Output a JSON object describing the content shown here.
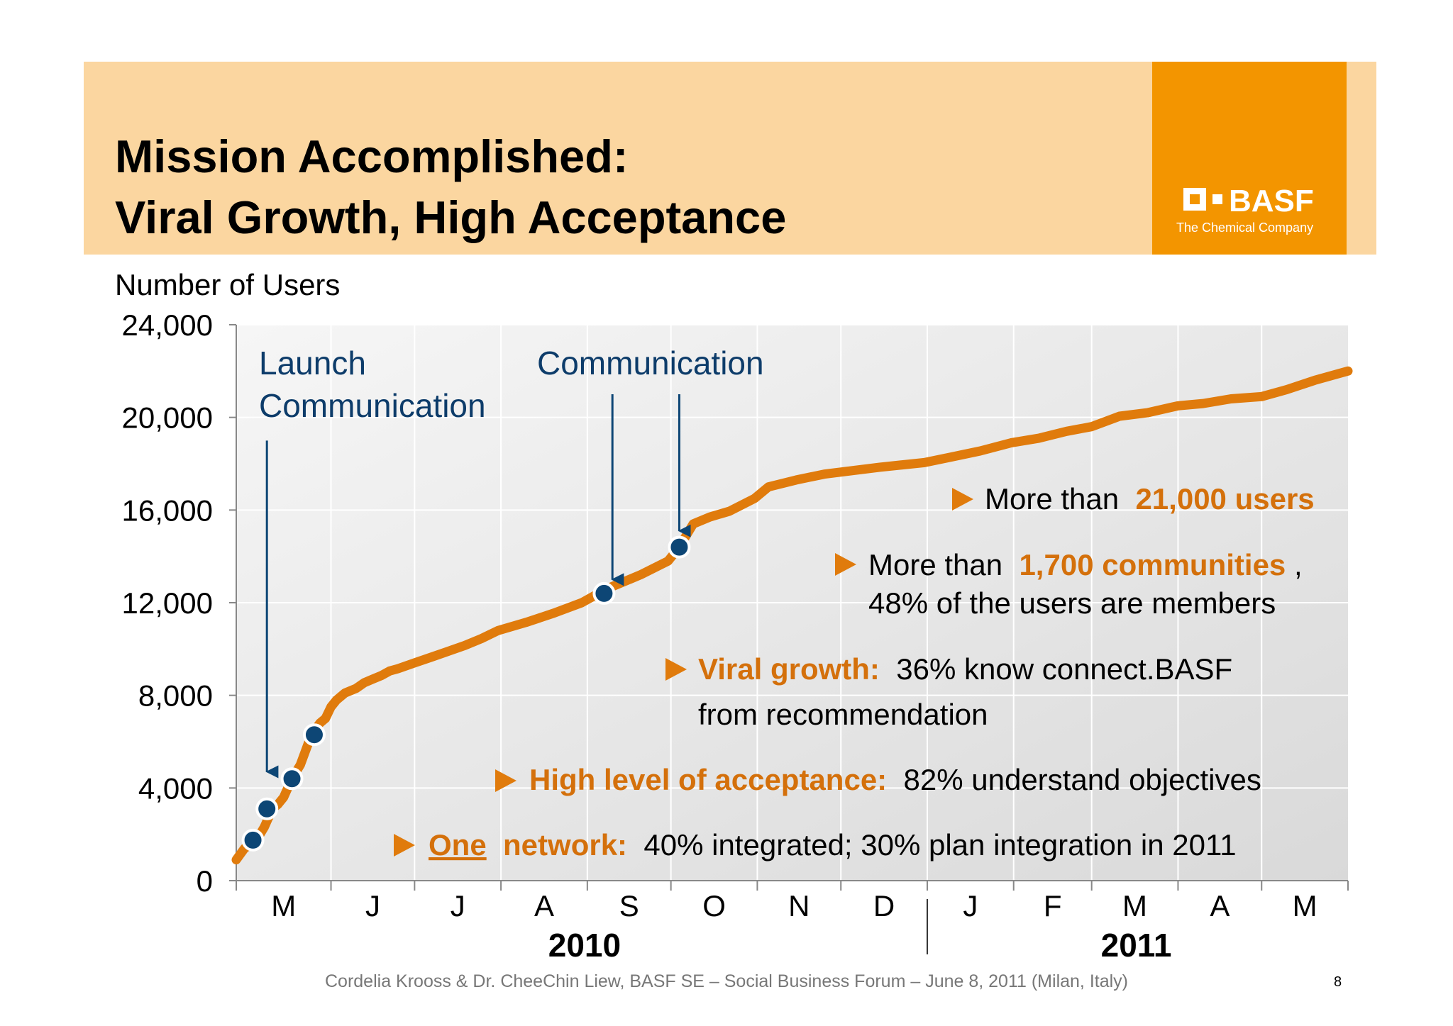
{
  "slide": {
    "title_line1": "Mission Accomplished:",
    "title_line2": "Viral Growth, High Acceptance",
    "logo_text": "BASF",
    "logo_subtitle": "The Chemical Company",
    "footer": "Cordelia Krooss & Dr. CheeChin Liew, BASF SE – Social Business Forum – June 8, 2011 (Milan, Italy)",
    "page_number": "8"
  },
  "colors": {
    "banner": "#fbd6a0",
    "logo_box": "#f39500",
    "line": "#e07b0c",
    "marker": "#0d4675",
    "highlight": "#d4700b",
    "annotation_text": "#0d3c6a"
  },
  "chart_data": {
    "type": "line",
    "ylabel": "Number of Users",
    "ylim": [
      0,
      24000
    ],
    "yticks": [
      0,
      4000,
      8000,
      12000,
      16000,
      20000,
      24000
    ],
    "ytick_labels": [
      "0",
      "4,000",
      "8,000",
      "12,000",
      "16,000",
      "20,000",
      "24,000"
    ],
    "grid": true,
    "month_boundaries": [
      "2010-04-28",
      "2010-06-01",
      "2010-07-01",
      "2010-08-01",
      "2010-09-01",
      "2010-10-01",
      "2010-11-01",
      "2010-12-01",
      "2011-01-01",
      "2011-02-01",
      "2011-03-01",
      "2011-04-01",
      "2011-05-01",
      "2011-06-01"
    ],
    "month_labels": [
      "M",
      "J",
      "J",
      "A",
      "S",
      "O",
      "N",
      "D",
      "J",
      "F",
      "M",
      "A",
      "M"
    ],
    "year_labels": [
      {
        "label": "2010",
        "center": "2010-08-31"
      },
      {
        "label": "2011",
        "center": "2011-03-17"
      }
    ],
    "year_divider": "2011-01-01",
    "series": [
      {
        "x": [
          "2010-04-28",
          "2010-05-01",
          "2010-05-05",
          "2010-05-08",
          "2010-05-11",
          "2010-05-13",
          "2010-05-15",
          "2010-05-18",
          "2010-05-21",
          "2010-05-25",
          "2010-05-28",
          "2010-05-30",
          "2010-06-01",
          "2010-06-03",
          "2010-06-06",
          "2010-06-10",
          "2010-06-13",
          "2010-06-16",
          "2010-06-19",
          "2010-06-22",
          "2010-06-25",
          "2010-07-01",
          "2010-07-07",
          "2010-07-13",
          "2010-07-19",
          "2010-07-25",
          "2010-07-31",
          "2010-08-10",
          "2010-08-20",
          "2010-08-30",
          "2010-09-05",
          "2010-09-10",
          "2010-09-15",
          "2010-09-20",
          "2010-09-30",
          "2010-10-04",
          "2010-10-09",
          "2010-10-15",
          "2010-10-22",
          "2010-10-31",
          "2010-11-05",
          "2010-11-15",
          "2010-11-25",
          "2010-12-05",
          "2010-12-15",
          "2010-12-31",
          "2011-01-10",
          "2011-01-20",
          "2011-01-31",
          "2011-02-10",
          "2011-02-20",
          "2011-03-01",
          "2011-03-11",
          "2011-03-21",
          "2011-04-01",
          "2011-04-10",
          "2011-04-20",
          "2011-05-01",
          "2011-05-10",
          "2011-05-20",
          "2011-06-01"
        ],
        "y": [
          900,
          1400,
          1700,
          2300,
          3100,
          3300,
          3600,
          4400,
          5000,
          6300,
          6800,
          7000,
          7500,
          7800,
          8100,
          8300,
          8550,
          8700,
          8850,
          9050,
          9150,
          9400,
          9650,
          9900,
          10150,
          10450,
          10800,
          11150,
          11550,
          12000,
          12400,
          12700,
          12950,
          13200,
          13800,
          14400,
          15400,
          15700,
          15950,
          16500,
          17000,
          17300,
          17550,
          17700,
          17850,
          18050,
          18300,
          18550,
          18900,
          19100,
          19400,
          19600,
          20050,
          20200,
          20500,
          20600,
          20800,
          20900,
          21200,
          21600,
          22000
        ]
      }
    ],
    "markers": [
      {
        "x": "2010-05-04",
        "y": 1750
      },
      {
        "x": "2010-05-09",
        "y": 3100
      },
      {
        "x": "2010-05-18",
        "y": 4400
      },
      {
        "x": "2010-05-26",
        "y": 6300
      },
      {
        "x": "2010-09-07",
        "y": 12400
      },
      {
        "x": "2010-10-04",
        "y": 14400
      }
    ],
    "event_labels": [
      {
        "line1": "Launch",
        "line2": "Communication"
      },
      {
        "line1": "Communication",
        "line2": ""
      }
    ],
    "event_arrows": [
      {
        "x": "2010-05-09",
        "y_from": 19000,
        "y_to": 4700
      },
      {
        "x": "2010-09-10",
        "y_from": 21000,
        "y_to": 13000
      },
      {
        "x": "2010-10-04",
        "y_from": 21000,
        "y_to": 15100
      }
    ],
    "bullets": [
      {
        "pre": "More than ",
        "highlight": "21,000 users",
        "post": "",
        "line2": ""
      },
      {
        "pre": "More than ",
        "highlight": "1,700 communities",
        "post": ",",
        "line2": "48% of the users are members"
      },
      {
        "pre": "",
        "highlight": "Viral growth:",
        "post": " 36% know connect.BASF",
        "line2": "from recommendation"
      },
      {
        "pre": "",
        "highlight": "High level of acceptance:",
        "post": " 82% understand objectives",
        "line2": ""
      },
      {
        "pre": "",
        "highlight_underlined": "One",
        "highlight": " network:",
        "post": " 40% integrated; 30% plan integration in 2011",
        "line2": ""
      }
    ]
  }
}
